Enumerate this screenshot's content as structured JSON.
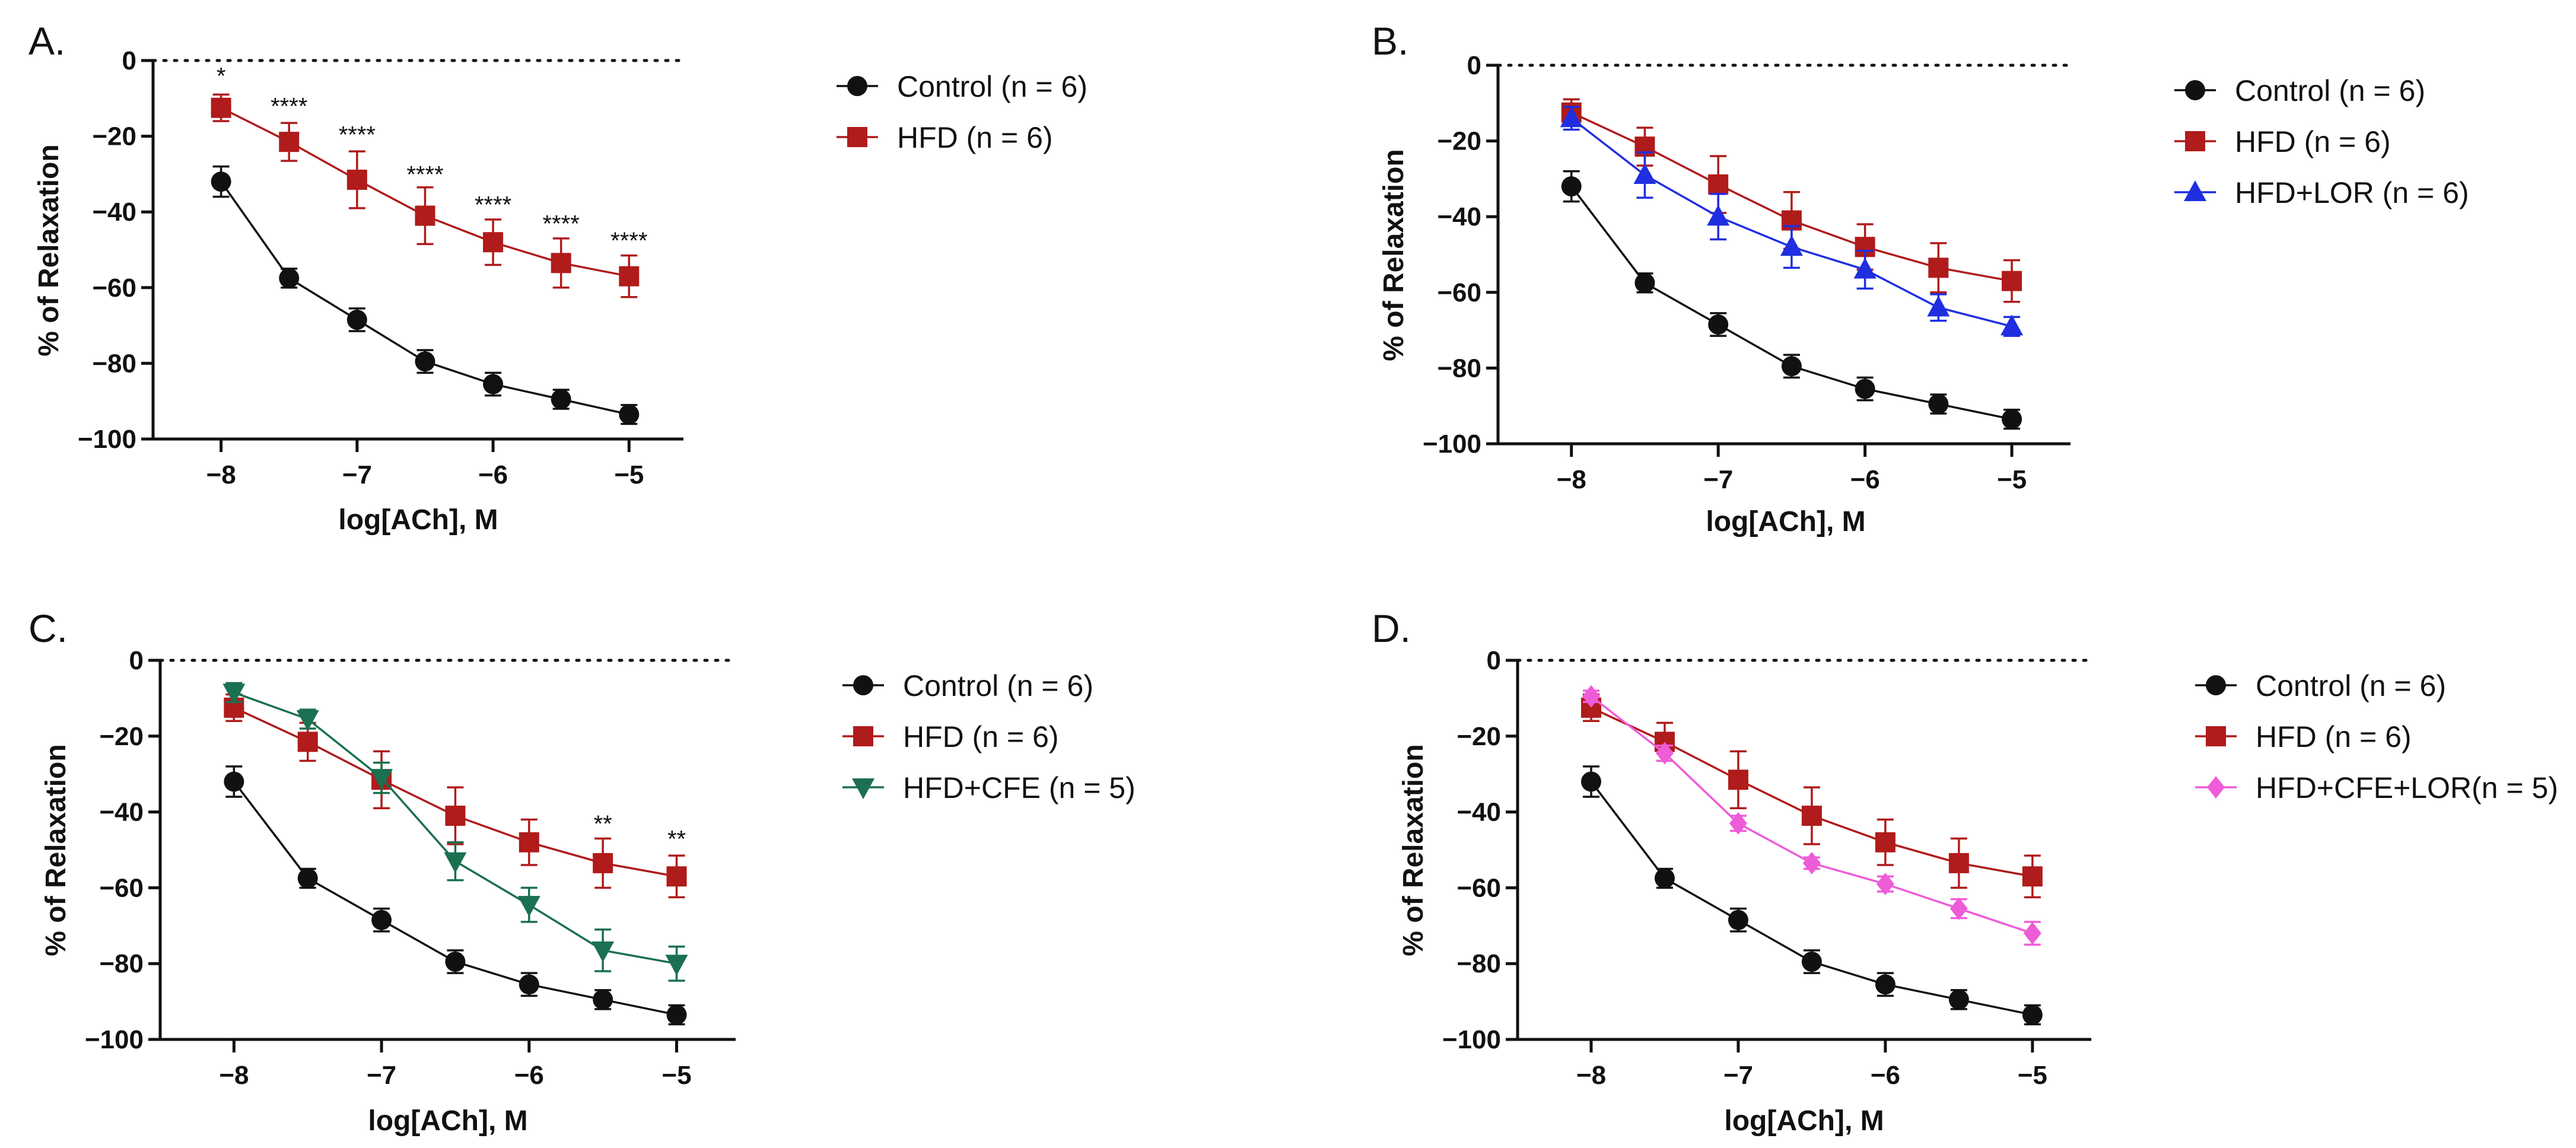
{
  "colors": {
    "Control": "#111111",
    "HFD": "#b01b1b",
    "HFD+LOR": "#1f2fe0",
    "HFD+CFE": "#1a7050",
    "HFD+CFE+LOR": "#ee5cd8"
  },
  "chart_data": [
    {
      "panel": "A.",
      "type": "line",
      "xlabel": "log[ACh], M",
      "ylabel": "% of Relaxation",
      "xlim": [
        -8.5,
        -4.6
      ],
      "ylim": [
        -100,
        0
      ],
      "xticks": [
        -8,
        -7,
        -6,
        -5
      ],
      "xtick_labels": [
        "−8",
        "−7",
        "−6",
        "−5"
      ],
      "yticks": [
        0,
        -20,
        -40,
        -60,
        -80,
        -100
      ],
      "ytick_labels": [
        "0",
        "−20",
        "−40",
        "−60",
        "−80",
        "−100"
      ],
      "x": [
        -8,
        -7.5,
        -7,
        -6.5,
        -6,
        -5.5,
        -5
      ],
      "legend_position": "right",
      "series": [
        {
          "name": "Control (n = 6)",
          "key": "Control",
          "marker": "circle",
          "values": [
            -32,
            -57.5,
            -68.5,
            -79.5,
            -85.5,
            -89.5,
            -93.5
          ],
          "errors": [
            4,
            2.5,
            3,
            3,
            3,
            2.5,
            2.5
          ]
        },
        {
          "name": "HFD (n = 6)",
          "key": "HFD",
          "marker": "square",
          "values": [
            -12.5,
            -21.5,
            -31.5,
            -41,
            -48,
            -53.5,
            -57
          ],
          "errors": [
            3.5,
            5,
            7.5,
            7.5,
            6,
            6.5,
            5.5
          ]
        }
      ],
      "annotations": [
        {
          "x": -8,
          "y": -4,
          "text": "*"
        },
        {
          "x": -7.5,
          "y": -12,
          "text": "****"
        },
        {
          "x": -7,
          "y": -19.5,
          "text": "****"
        },
        {
          "x": -6.5,
          "y": -30,
          "text": "****"
        },
        {
          "x": -6,
          "y": -38,
          "text": "****"
        },
        {
          "x": -5.5,
          "y": -43,
          "text": "****"
        },
        {
          "x": -5,
          "y": -47.5,
          "text": "****"
        }
      ]
    },
    {
      "panel": "B.",
      "type": "line",
      "xlabel": "log[ACh], M",
      "ylabel": "% of Relaxation",
      "xlim": [
        -8.5,
        -4.6
      ],
      "ylim": [
        -100,
        0
      ],
      "xticks": [
        -8,
        -7,
        -6,
        -5
      ],
      "xtick_labels": [
        "−8",
        "−7",
        "−6",
        "−5"
      ],
      "yticks": [
        0,
        -20,
        -40,
        -60,
        -80,
        -100
      ],
      "ytick_labels": [
        "0",
        "−20",
        "−40",
        "−60",
        "−80",
        "−100"
      ],
      "x": [
        -8,
        -7.5,
        -7,
        -6.5,
        -6,
        -5.5,
        -5
      ],
      "legend_position": "right",
      "series": [
        {
          "name": "Control (n = 6)",
          "key": "Control",
          "marker": "circle",
          "values": [
            -32,
            -57.5,
            -68.5,
            -79.5,
            -85.5,
            -89.5,
            -93.5
          ],
          "errors": [
            4,
            2.5,
            3,
            3,
            3,
            2.5,
            2.5
          ]
        },
        {
          "name": "HFD (n = 6)",
          "key": "HFD",
          "marker": "square",
          "values": [
            -12.5,
            -21.5,
            -31.5,
            -41,
            -48,
            -53.5,
            -57
          ],
          "errors": [
            3.5,
            5,
            7.5,
            7.5,
            6,
            6.5,
            5.5
          ]
        },
        {
          "name": "HFD+LOR (n = 6)",
          "key": "HFD+LOR",
          "marker": "triangle-up",
          "values": [
            -14,
            -29,
            -40,
            -48,
            -54,
            -64,
            -69
          ],
          "errors": [
            3,
            6,
            6,
            5.5,
            5,
            3.5,
            2.5
          ]
        }
      ],
      "annotations": []
    },
    {
      "panel": "C.",
      "type": "line",
      "xlabel": "log[ACh], M",
      "ylabel": "% of Relaxation",
      "xlim": [
        -8.5,
        -4.6
      ],
      "ylim": [
        -100,
        0
      ],
      "xticks": [
        -8,
        -7,
        -6,
        -5
      ],
      "xtick_labels": [
        "−8",
        "−7",
        "−6",
        "−5"
      ],
      "yticks": [
        0,
        -20,
        -40,
        -60,
        -80,
        -100
      ],
      "ytick_labels": [
        "0",
        "−20",
        "−40",
        "−60",
        "−80",
        "−100"
      ],
      "x": [
        -8,
        -7.5,
        -7,
        -6.5,
        -6,
        -5.5,
        -5
      ],
      "legend_position": "right",
      "series": [
        {
          "name": "Control (n = 6)",
          "key": "Control",
          "marker": "circle",
          "values": [
            -32,
            -57.5,
            -68.5,
            -79.5,
            -85.5,
            -89.5,
            -93.5
          ],
          "errors": [
            4,
            2.5,
            3,
            3,
            3,
            2.5,
            2.5
          ]
        },
        {
          "name": "HFD (n = 6)",
          "key": "HFD",
          "marker": "square",
          "values": [
            -12.5,
            -21.5,
            -31.5,
            -41,
            -48,
            -53.5,
            -57
          ],
          "errors": [
            3.5,
            5,
            7.5,
            7.5,
            6,
            6.5,
            5.5
          ]
        },
        {
          "name": "HFD+CFE (n = 5)",
          "key": "HFD+CFE",
          "marker": "triangle-down",
          "values": [
            -8.5,
            -15.5,
            -31,
            -53,
            -64.5,
            -76.5,
            -80
          ],
          "errors": [
            2.5,
            2.5,
            4,
            5,
            4.5,
            5.5,
            4.5
          ]
        }
      ],
      "annotations": [
        {
          "x": -5.5,
          "y": -43,
          "text": "**"
        },
        {
          "x": -5,
          "y": -47,
          "text": "**"
        }
      ]
    },
    {
      "panel": "D.",
      "type": "line",
      "xlabel": "log[ACh], M",
      "ylabel": "% of Relaxation",
      "xlim": [
        -8.5,
        -4.6
      ],
      "ylim": [
        -100,
        0
      ],
      "xticks": [
        -8,
        -7,
        -6,
        -5
      ],
      "xtick_labels": [
        "−8",
        "−7",
        "−6",
        "−5"
      ],
      "yticks": [
        0,
        -20,
        -40,
        -60,
        -80,
        -100
      ],
      "ytick_labels": [
        "0",
        "−20",
        "−40",
        "−60",
        "−80",
        "−100"
      ],
      "x": [
        -8,
        -7.5,
        -7,
        -6.5,
        -6,
        -5.5,
        -5
      ],
      "legend_position": "right",
      "series": [
        {
          "name": "Control (n = 6)",
          "key": "Control",
          "marker": "circle",
          "values": [
            -32,
            -57.5,
            -68.5,
            -79.5,
            -85.5,
            -89.5,
            -93.5
          ],
          "errors": [
            4,
            2.5,
            3,
            3,
            3,
            2.5,
            2.5
          ]
        },
        {
          "name": "HFD (n = 6)",
          "key": "HFD",
          "marker": "square",
          "values": [
            -12.5,
            -21.5,
            -31.5,
            -41,
            -48,
            -53.5,
            -57
          ],
          "errors": [
            3.5,
            5,
            7.5,
            7.5,
            6,
            6.5,
            5.5
          ]
        },
        {
          "name": "HFD+CFE+LOR(n = 5)",
          "key": "HFD+CFE+LOR",
          "marker": "diamond",
          "values": [
            -9.5,
            -24.5,
            -43,
            -53.5,
            -59,
            -65.5,
            -72
          ],
          "errors": [
            1.5,
            2,
            2,
            1.5,
            2,
            2.5,
            3
          ]
        }
      ],
      "annotations": []
    }
  ]
}
